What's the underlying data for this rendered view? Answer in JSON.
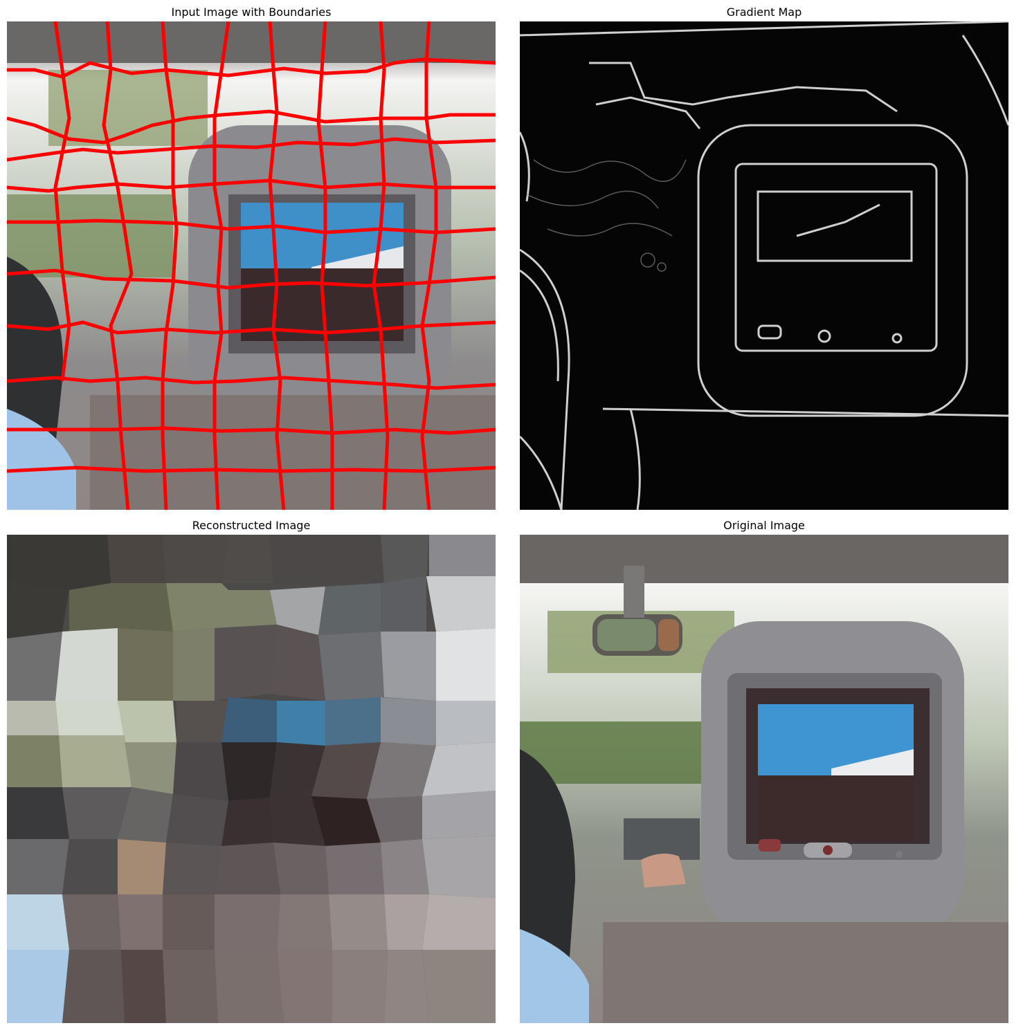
{
  "figure": {
    "panels": [
      {
        "id": "boundaries",
        "title": "Input Image with Boundaries"
      },
      {
        "id": "gradient",
        "title": "Gradient Map"
      },
      {
        "id": "reconstructed",
        "title": "Reconstructed Image"
      },
      {
        "id": "original",
        "title": "Original Image"
      }
    ]
  },
  "colors": {
    "boundary": "#ff0000",
    "background": "#ffffff",
    "gradient_bg": "#000000",
    "gradient_edge": "#d0d0d0"
  }
}
